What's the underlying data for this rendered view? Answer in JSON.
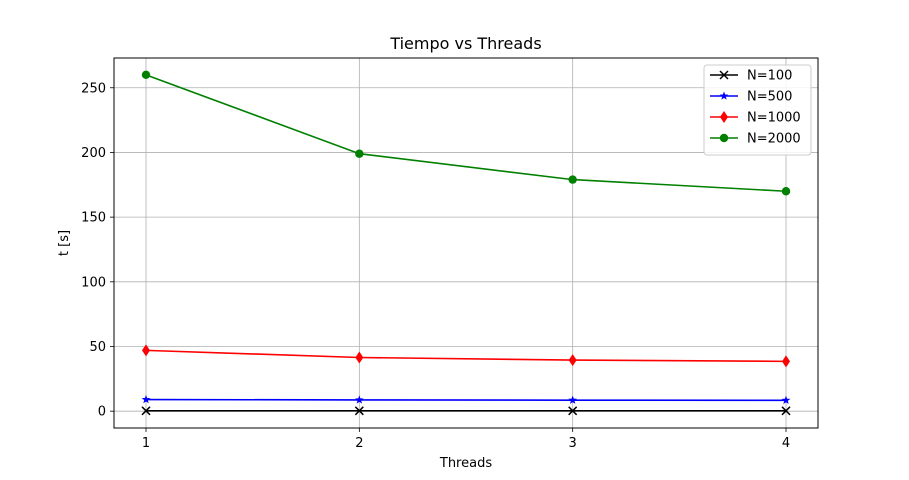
{
  "chart_data": {
    "type": "line",
    "title": "Tiempo vs Threads",
    "xlabel": "Threads",
    "ylabel": "t [s]",
    "x": [
      1,
      2,
      3,
      4
    ],
    "xlim": [
      0.85,
      4.15
    ],
    "ylim": [
      -13,
      273
    ],
    "xticks": [
      1,
      2,
      3,
      4
    ],
    "yticks": [
      0,
      50,
      100,
      150,
      200,
      250
    ],
    "grid": true,
    "legend_position": "top-right",
    "series": [
      {
        "name": "N=100",
        "color": "#000000",
        "marker": "x",
        "values": [
          0.3,
          0.3,
          0.3,
          0.3
        ]
      },
      {
        "name": "N=500",
        "color": "#0000ff",
        "marker": "star",
        "values": [
          9.0,
          8.7,
          8.5,
          8.4
        ]
      },
      {
        "name": "N=1000",
        "color": "#ff0000",
        "marker": "diamond",
        "values": [
          47.0,
          41.5,
          39.5,
          38.5
        ]
      },
      {
        "name": "N=2000",
        "color": "#008000",
        "marker": "circle",
        "values": [
          260,
          199,
          179,
          170
        ]
      }
    ]
  }
}
